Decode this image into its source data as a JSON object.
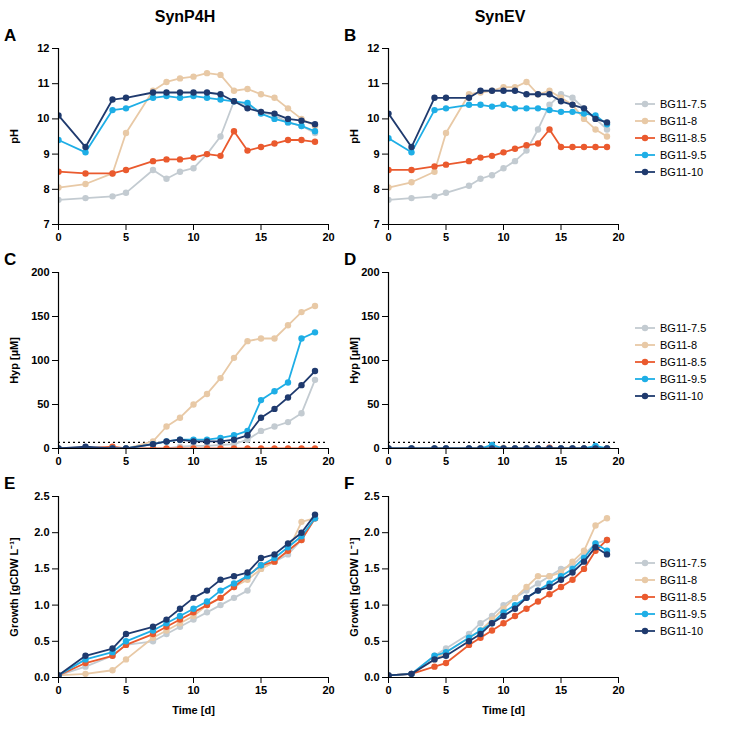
{
  "chart_data": [
    {
      "type": "line",
      "panel_label": "A",
      "title": "SynP4H",
      "x_label": null,
      "y_label": "pH",
      "x": [
        0,
        2,
        4,
        5,
        7,
        8,
        9,
        10,
        11,
        12,
        13,
        14,
        15,
        16,
        17,
        18,
        19
      ],
      "xlim": [
        0,
        20
      ],
      "xticks": [
        0,
        5,
        10,
        15,
        20
      ],
      "ylim": [
        7,
        12
      ],
      "yticks": [
        7,
        8,
        9,
        10,
        11,
        12
      ],
      "grid": false,
      "series": [
        {
          "name": "BG11-7.5",
          "color": "#c3cbd1",
          "marker": "circle",
          "values": [
            7.7,
            7.75,
            7.8,
            7.9,
            8.55,
            8.3,
            8.5,
            8.6,
            9.0,
            9.5,
            10.5,
            10.4,
            10.2,
            10.1,
            9.9,
            9.8,
            9.6
          ]
        },
        {
          "name": "BG11-8",
          "color": "#e8c9a6",
          "marker": "circle",
          "values": [
            8.05,
            8.15,
            8.45,
            9.6,
            10.8,
            11.05,
            11.15,
            11.2,
            11.3,
            11.25,
            10.8,
            10.85,
            10.7,
            10.6,
            10.3,
            10.0,
            9.8
          ]
        },
        {
          "name": "BG11-8.5",
          "color": "#ea5a2e",
          "marker": "circle",
          "values": [
            8.5,
            8.45,
            8.45,
            8.55,
            8.8,
            8.85,
            8.85,
            8.9,
            9.0,
            8.95,
            9.65,
            9.1,
            9.2,
            9.3,
            9.4,
            9.4,
            9.35
          ]
        },
        {
          "name": "BG11-9.5",
          "color": "#1eaee6",
          "marker": "circle",
          "values": [
            9.4,
            9.05,
            10.25,
            10.3,
            10.6,
            10.65,
            10.6,
            10.65,
            10.6,
            10.55,
            10.5,
            10.45,
            10.15,
            10.0,
            9.9,
            9.8,
            9.65
          ]
        },
        {
          "name": "BG11-10",
          "color": "#1f3a6e",
          "marker": "circle",
          "values": [
            10.1,
            9.2,
            10.55,
            10.6,
            10.75,
            10.75,
            10.75,
            10.75,
            10.75,
            10.7,
            10.5,
            10.3,
            10.2,
            10.15,
            10.0,
            9.95,
            9.85
          ]
        }
      ]
    },
    {
      "type": "line",
      "panel_label": "B",
      "title": "SynEV",
      "x_label": null,
      "y_label": "pH",
      "legend": "right",
      "x": [
        0,
        2,
        4,
        5,
        7,
        8,
        9,
        10,
        11,
        12,
        13,
        14,
        15,
        16,
        17,
        18,
        19
      ],
      "xlim": [
        0,
        20
      ],
      "xticks": [
        0,
        5,
        10,
        15,
        20
      ],
      "ylim": [
        7,
        12
      ],
      "yticks": [
        7,
        8,
        9,
        10,
        11,
        12
      ],
      "grid": false,
      "series": [
        {
          "name": "BG11-7.5",
          "color": "#c3cbd1",
          "marker": "circle",
          "values": [
            7.7,
            7.75,
            7.8,
            7.9,
            8.1,
            8.3,
            8.4,
            8.6,
            8.8,
            9.1,
            9.7,
            10.4,
            10.7,
            10.6,
            10.3,
            10.0,
            9.7
          ]
        },
        {
          "name": "BG11-8",
          "color": "#e8c9a6",
          "marker": "circle",
          "values": [
            8.05,
            8.2,
            8.5,
            9.6,
            10.7,
            10.75,
            10.8,
            10.9,
            10.9,
            11.05,
            10.7,
            10.8,
            10.6,
            10.4,
            10.0,
            9.7,
            9.5
          ]
        },
        {
          "name": "BG11-8.5",
          "color": "#ea5a2e",
          "marker": "circle",
          "values": [
            8.55,
            8.55,
            8.65,
            8.7,
            8.8,
            8.9,
            8.95,
            9.05,
            9.15,
            9.25,
            9.3,
            9.7,
            9.2,
            9.2,
            9.2,
            9.2,
            9.2
          ]
        },
        {
          "name": "BG11-9.5",
          "color": "#1eaee6",
          "marker": "circle",
          "values": [
            9.45,
            9.05,
            10.25,
            10.3,
            10.4,
            10.4,
            10.35,
            10.4,
            10.3,
            10.3,
            10.3,
            10.25,
            10.2,
            10.2,
            10.15,
            10.1,
            9.85
          ]
        },
        {
          "name": "BG11-10",
          "color": "#1f3a6e",
          "marker": "circle",
          "values": [
            10.15,
            9.2,
            10.6,
            10.6,
            10.6,
            10.8,
            10.8,
            10.8,
            10.8,
            10.7,
            10.7,
            10.7,
            10.5,
            10.4,
            10.3,
            10.0,
            9.9
          ]
        }
      ]
    },
    {
      "type": "line",
      "panel_label": "C",
      "x_label": null,
      "y_label": "Hyp [µM]",
      "threshold": 7,
      "x": [
        0,
        2,
        4,
        5,
        7,
        8,
        9,
        10,
        11,
        12,
        13,
        14,
        15,
        16,
        17,
        18,
        19
      ],
      "xlim": [
        0,
        20
      ],
      "xticks": [
        0,
        5,
        10,
        15,
        20
      ],
      "ylim": [
        0,
        200
      ],
      "yticks": [
        0,
        50,
        100,
        150,
        200
      ],
      "grid": false,
      "series": [
        {
          "name": "BG11-7.5",
          "color": "#c3cbd1",
          "marker": "circle",
          "values": [
            0,
            0,
            0,
            0,
            0,
            0,
            2,
            3,
            3,
            4,
            5,
            10,
            20,
            25,
            30,
            40,
            78
          ]
        },
        {
          "name": "BG11-8",
          "color": "#e8c9a6",
          "marker": "circle",
          "values": [
            0,
            0,
            0,
            0,
            8,
            25,
            35,
            50,
            62,
            80,
            103,
            122,
            125,
            125,
            140,
            155,
            162
          ]
        },
        {
          "name": "BG11-8.5",
          "color": "#ea5a2e",
          "marker": "circle",
          "values": [
            0,
            0,
            2,
            0,
            0,
            0,
            0,
            0,
            0,
            0,
            0,
            0,
            0,
            0,
            0,
            0,
            0
          ]
        },
        {
          "name": "BG11-9.5",
          "color": "#1eaee6",
          "marker": "circle",
          "values": [
            0,
            0,
            0,
            0,
            5,
            8,
            10,
            10,
            10,
            12,
            15,
            20,
            55,
            65,
            75,
            125,
            132
          ]
        },
        {
          "name": "BG11-10",
          "color": "#1f3a6e",
          "marker": "circle",
          "values": [
            0,
            2,
            0,
            0,
            5,
            8,
            10,
            8,
            8,
            8,
            10,
            15,
            35,
            45,
            58,
            72,
            88
          ]
        }
      ]
    },
    {
      "type": "line",
      "panel_label": "D",
      "x_label": null,
      "y_label": "Hyp [µM]",
      "legend": "right",
      "threshold": 7,
      "x": [
        0,
        2,
        4,
        5,
        7,
        8,
        9,
        10,
        11,
        12,
        13,
        14,
        15,
        16,
        17,
        18,
        19
      ],
      "xlim": [
        0,
        20
      ],
      "xticks": [
        0,
        5,
        10,
        15,
        20
      ],
      "ylim": [
        0,
        200
      ],
      "yticks": [
        0,
        50,
        100,
        150,
        200
      ],
      "grid": false,
      "series": [
        {
          "name": "BG11-7.5",
          "color": "#c3cbd1",
          "marker": "circle",
          "values": [
            0,
            0,
            0,
            0,
            0,
            0,
            0,
            0,
            0,
            0,
            0,
            0,
            0,
            0,
            0,
            0,
            0
          ]
        },
        {
          "name": "BG11-8",
          "color": "#e8c9a6",
          "marker": "circle",
          "values": [
            0,
            0,
            0,
            0,
            0,
            0,
            0,
            1,
            0,
            0,
            0,
            0,
            0,
            0,
            0,
            0,
            0
          ]
        },
        {
          "name": "BG11-8.5",
          "color": "#ea5a2e",
          "marker": "circle",
          "values": [
            0,
            0,
            0,
            0,
            0,
            0,
            0,
            0,
            0,
            0,
            0,
            1,
            0,
            0,
            0,
            0,
            0
          ]
        },
        {
          "name": "BG11-9.5",
          "color": "#1eaee6",
          "marker": "circle",
          "values": [
            0,
            0,
            0,
            0,
            0,
            0,
            4,
            0,
            0,
            0,
            0,
            0,
            0,
            0,
            0,
            3,
            0
          ]
        },
        {
          "name": "BG11-10",
          "color": "#1f3a6e",
          "marker": "circle",
          "values": [
            0,
            0,
            0,
            0,
            0,
            0,
            0,
            0,
            0,
            0,
            0,
            0,
            0,
            0,
            0,
            0,
            0
          ]
        }
      ]
    },
    {
      "type": "line",
      "panel_label": "E",
      "x_label": "Time [d]",
      "y_label": "Growth [gCDW L⁻¹]",
      "x": [
        0,
        2,
        4,
        5,
        7,
        8,
        9,
        10,
        11,
        12,
        13,
        14,
        15,
        16,
        17,
        18,
        19
      ],
      "xlim": [
        0,
        20
      ],
      "xticks": [
        0,
        5,
        10,
        15,
        20
      ],
      "ylim": [
        0,
        2.5
      ],
      "yticks": [
        {
          "value": 0,
          "label": "0.0"
        },
        0.5,
        {
          "value": 1,
          "label": "1.0"
        },
        1.5,
        {
          "value": 2,
          "label": "2.0"
        },
        2.5
      ],
      "grid": false,
      "series": [
        {
          "name": "BG11-7.5",
          "color": "#c3cbd1",
          "marker": "circle",
          "values": [
            0.03,
            0.15,
            0.3,
            0.45,
            0.5,
            0.6,
            0.7,
            0.8,
            0.9,
            1.0,
            1.1,
            1.2,
            1.5,
            1.6,
            1.7,
            1.9,
            2.2
          ]
        },
        {
          "name": "BG11-8",
          "color": "#e8c9a6",
          "marker": "circle",
          "values": [
            0.03,
            0.05,
            0.1,
            0.25,
            0.55,
            0.65,
            0.75,
            0.85,
            1.0,
            1.1,
            1.25,
            1.35,
            1.5,
            1.6,
            1.75,
            2.15,
            2.2
          ]
        },
        {
          "name": "BG11-8.5",
          "color": "#ea5a2e",
          "marker": "circle",
          "values": [
            0.03,
            0.2,
            0.3,
            0.45,
            0.6,
            0.7,
            0.8,
            0.9,
            1.0,
            1.1,
            1.25,
            1.4,
            1.55,
            1.6,
            1.75,
            1.9,
            2.2
          ]
        },
        {
          "name": "BG11-9.5",
          "color": "#1eaee6",
          "marker": "circle",
          "values": [
            0.03,
            0.25,
            0.35,
            0.5,
            0.65,
            0.75,
            0.85,
            0.95,
            1.05,
            1.2,
            1.3,
            1.4,
            1.55,
            1.65,
            1.8,
            1.95,
            2.2
          ]
        },
        {
          "name": "BG11-10",
          "color": "#1f3a6e",
          "marker": "circle",
          "values": [
            0.03,
            0.3,
            0.4,
            0.6,
            0.7,
            0.8,
            0.95,
            1.1,
            1.2,
            1.35,
            1.4,
            1.45,
            1.65,
            1.7,
            1.85,
            2.0,
            2.25
          ]
        }
      ]
    },
    {
      "type": "line",
      "panel_label": "F",
      "x_label": "Time [d]",
      "y_label": "Growth [gCDW L⁻¹]",
      "legend": "right",
      "x": [
        0,
        2,
        4,
        5,
        7,
        8,
        9,
        10,
        11,
        12,
        13,
        14,
        15,
        16,
        17,
        18,
        19
      ],
      "xlim": [
        0,
        20
      ],
      "xticks": [
        0,
        5,
        10,
        15,
        20
      ],
      "ylim": [
        0,
        2.5
      ],
      "yticks": [
        {
          "value": 0,
          "label": "0.0"
        },
        0.5,
        {
          "value": 1,
          "label": "1.0"
        },
        1.5,
        {
          "value": 2,
          "label": "2.0"
        },
        2.5
      ],
      "grid": false,
      "series": [
        {
          "name": "BG11-7.5",
          "color": "#c3cbd1",
          "marker": "circle",
          "values": [
            0.03,
            0.05,
            0.3,
            0.4,
            0.6,
            0.75,
            0.85,
            1.0,
            1.1,
            1.2,
            1.3,
            1.4,
            1.5,
            1.55,
            1.7,
            1.85,
            1.9
          ]
        },
        {
          "name": "BG11-8",
          "color": "#e8c9a6",
          "marker": "circle",
          "values": [
            0.03,
            0.05,
            0.25,
            0.35,
            0.55,
            0.65,
            0.8,
            0.95,
            1.1,
            1.25,
            1.4,
            1.4,
            1.45,
            1.6,
            1.75,
            2.1,
            2.2
          ]
        },
        {
          "name": "BG11-8.5",
          "color": "#ea5a2e",
          "marker": "circle",
          "values": [
            0.03,
            0.05,
            0.15,
            0.2,
            0.45,
            0.55,
            0.65,
            0.75,
            0.85,
            0.95,
            1.05,
            1.15,
            1.25,
            1.35,
            1.5,
            1.75,
            1.9
          ]
        },
        {
          "name": "BG11-9.5",
          "color": "#1eaee6",
          "marker": "circle",
          "values": [
            0.03,
            0.05,
            0.3,
            0.35,
            0.55,
            0.65,
            0.75,
            0.9,
            1.0,
            1.1,
            1.2,
            1.3,
            1.4,
            1.5,
            1.65,
            1.85,
            1.75
          ]
        },
        {
          "name": "BG11-10",
          "color": "#1f3a6e",
          "marker": "circle",
          "values": [
            0.03,
            0.05,
            0.25,
            0.3,
            0.5,
            0.6,
            0.75,
            0.85,
            0.95,
            1.1,
            1.2,
            1.25,
            1.35,
            1.45,
            1.6,
            1.8,
            1.7
          ]
        }
      ]
    }
  ]
}
